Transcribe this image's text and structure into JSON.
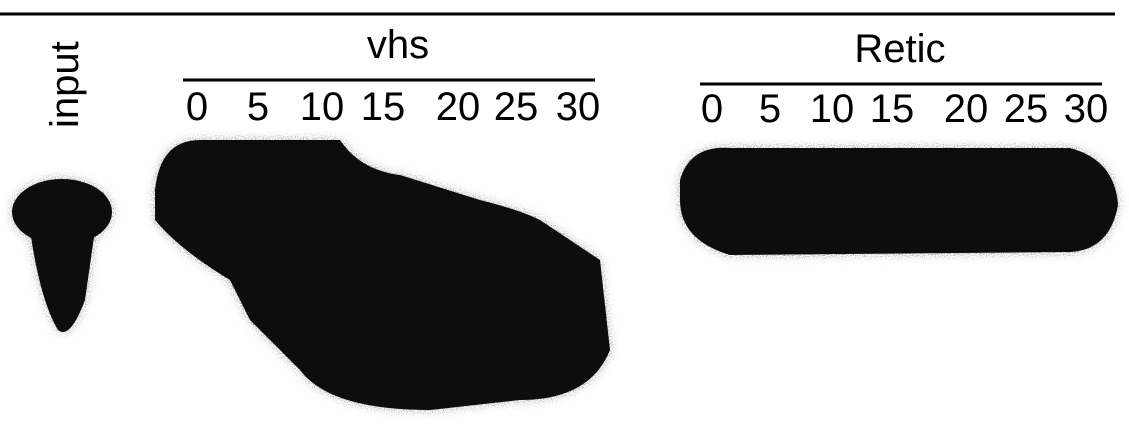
{
  "input_label": "input",
  "groups": [
    {
      "title": "vhs",
      "lanes": [
        0,
        5,
        10,
        15,
        20,
        25,
        30
      ]
    },
    {
      "title": "Retic",
      "lanes": [
        0,
        5,
        10,
        15,
        20,
        25,
        30
      ]
    }
  ]
}
